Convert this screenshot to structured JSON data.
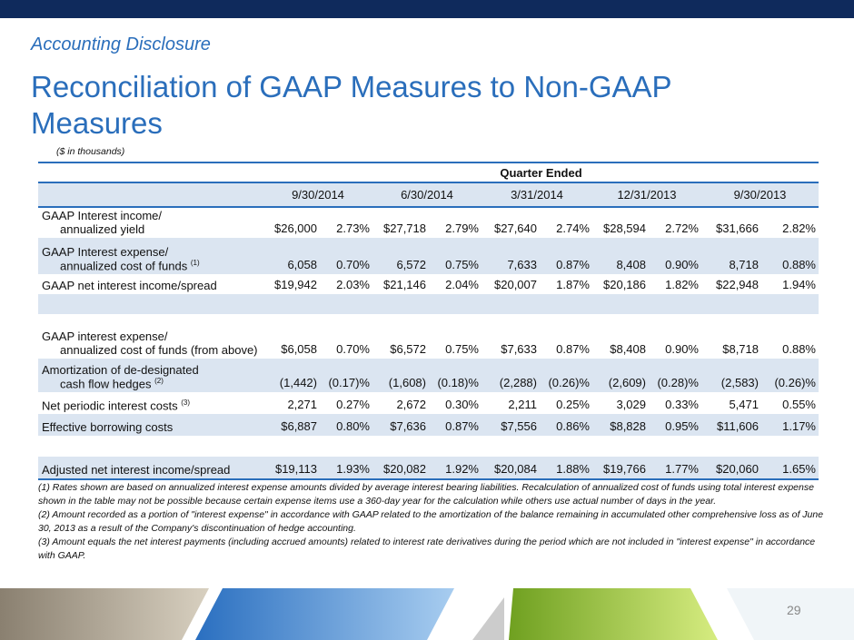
{
  "header": {
    "subtitle": "Accounting Disclosure",
    "title": "Reconciliation of GAAP Measures to Non-GAAP Measures",
    "units": "($ in thousands)"
  },
  "table": {
    "group_header": "Quarter Ended",
    "columns": [
      "9/30/2014",
      "6/30/2014",
      "3/31/2014",
      "12/31/2013",
      "9/30/2013"
    ],
    "rows": [
      {
        "label": [
          "GAAP Interest income/",
          "annualized yield"
        ],
        "cells": [
          "$26,000",
          "2.73%",
          "$27,718",
          "2.79%",
          "$27,640",
          "2.74%",
          "$28,594",
          "2.72%",
          "$31,666",
          "2.82%"
        ]
      },
      {
        "label": [
          "GAAP Interest expense/",
          "annualized cost of funds"
        ],
        "note": "(1)",
        "cells": [
          "6,058",
          "0.70%",
          "6,572",
          "0.75%",
          "7,633",
          "0.87%",
          "8,408",
          "0.90%",
          "8,718",
          "0.88%"
        ]
      },
      {
        "label": [
          "GAAP net interest income/spread"
        ],
        "cells": [
          "$19,942",
          "2.03%",
          "$21,146",
          "2.04%",
          "$20,007",
          "1.87%",
          "$20,186",
          "1.82%",
          "$22,948",
          "1.94%"
        ]
      },
      {
        "label": [
          "GAAP interest expense/",
          "annualized cost of funds (from above)"
        ],
        "cells": [
          "$6,058",
          "0.70%",
          "$6,572",
          "0.75%",
          "$7,633",
          "0.87%",
          "$8,408",
          "0.90%",
          "$8,718",
          "0.88%"
        ]
      },
      {
        "label": [
          "Amortization of de-designated",
          "cash flow hedges"
        ],
        "note": "(2)",
        "cells": [
          "(1,442)",
          "(0.17)%",
          "(1,608)",
          "(0.18)%",
          "(2,288)",
          "(0.26)%",
          "(2,609)",
          "(0.28)%",
          "(2,583)",
          "(0.26)%"
        ]
      },
      {
        "label": [
          "Net periodic interest costs"
        ],
        "note": "(3)",
        "cells": [
          "2,271",
          "0.27%",
          "2,672",
          "0.30%",
          "2,211",
          "0.25%",
          "3,029",
          "0.33%",
          "5,471",
          "0.55%"
        ]
      },
      {
        "label": [
          "Effective borrowing costs"
        ],
        "cells": [
          "$6,887",
          "0.80%",
          "$7,636",
          "0.87%",
          "$7,556",
          "0.86%",
          "$8,828",
          "0.95%",
          "$11,606",
          "1.17%"
        ]
      },
      {
        "label": [
          "Adjusted net interest income/spread"
        ],
        "cells": [
          "$19,113",
          "1.93%",
          "$20,082",
          "1.92%",
          "$20,084",
          "1.88%",
          "$19,766",
          "1.77%",
          "$20,060",
          "1.65%"
        ]
      }
    ]
  },
  "footnotes": [
    "(1) Rates shown are based on annualized interest expense amounts divided by average interest bearing liabilities.  Recalculation of annualized cost of funds using total interest expense shown in the table may not be possible because certain expense items use a 360-day year for the calculation while others use actual number of days in the year.",
    "(2)  Amount recorded as a portion of \"interest expense\" in accordance with GAAP related to the amortization of the balance remaining in accumulated other comprehensive loss as of June 30, 2013 as a result of the Company's discontinuation of hedge accounting.",
    "(3)  Amount equals the net interest payments (including accrued amounts) related to interest rate derivatives during the period which are not included in \"interest expense\" in accordance with GAAP."
  ],
  "page_number": "29"
}
